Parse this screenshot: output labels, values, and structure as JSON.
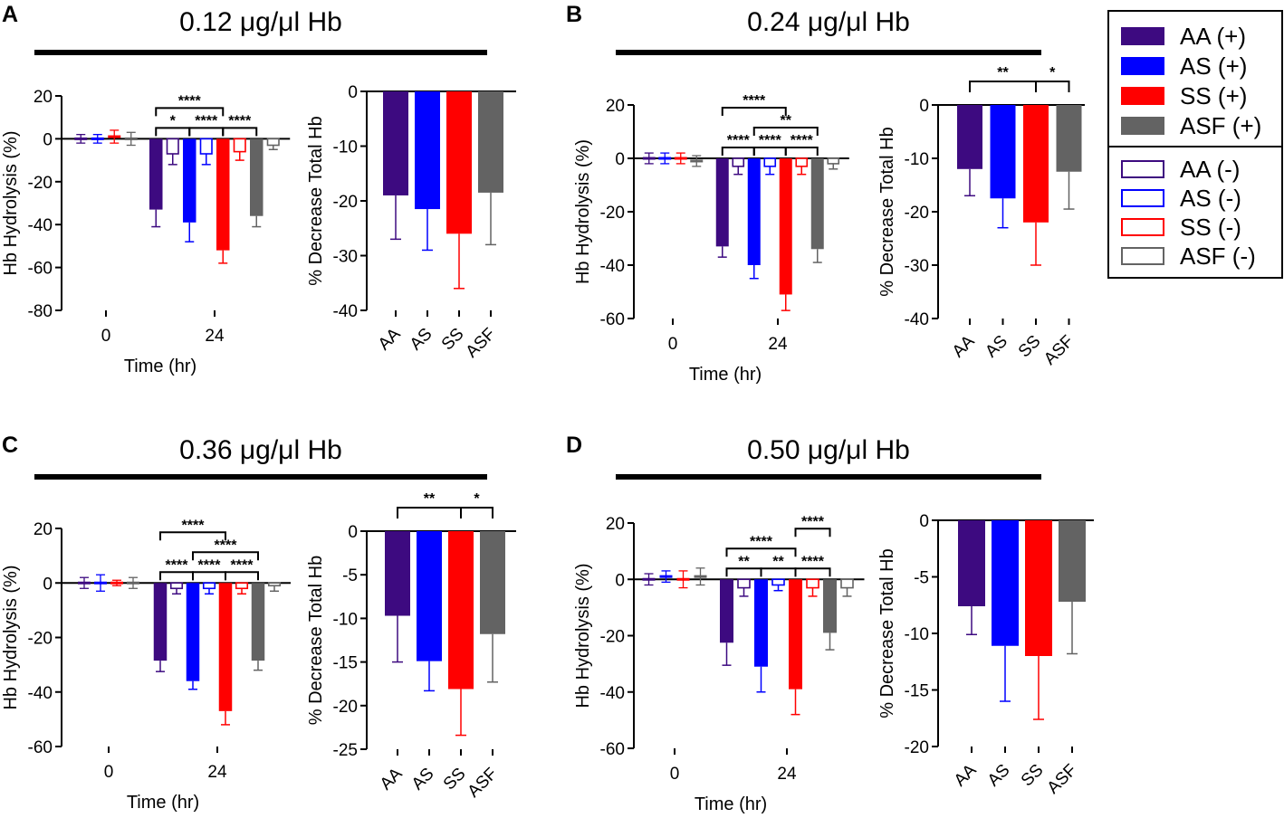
{
  "legend": {
    "entries": [
      {
        "label": "AA (+)",
        "color": "#3d0a80",
        "filled": true
      },
      {
        "label": "AS (+)",
        "color": "#0000ff",
        "filled": true
      },
      {
        "label": "SS (+)",
        "color": "#ff0000",
        "filled": true
      },
      {
        "label": "ASF (+)",
        "color": "#636363",
        "filled": true
      },
      {
        "label": "AA (-)",
        "color": "#3d0a80",
        "filled": false
      },
      {
        "label": "AS (-)",
        "color": "#0000ff",
        "filled": false
      },
      {
        "label": "SS (-)",
        "color": "#ff0000",
        "filled": false
      },
      {
        "label": "ASF (-)",
        "color": "#636363",
        "filled": false
      }
    ]
  },
  "chart_data": [
    {
      "panel": "A",
      "title": "0.12 μg/μl Hb",
      "hydrolysis": {
        "type": "bar",
        "xlabel": "Time (hr)",
        "ylabel": "Hb Hydrolysis (%)",
        "ylim": [
          -80,
          20
        ],
        "yticks": [
          20,
          0,
          -20,
          -40,
          -60,
          -80
        ],
        "xticks": [
          "0",
          "24"
        ],
        "t0": [
          {
            "v": 0,
            "e": 2
          },
          {
            "v": 0,
            "e": 2
          },
          {
            "v": 1,
            "e": 3
          },
          {
            "v": 0,
            "e": 3
          }
        ],
        "t24": [
          {
            "v": -33,
            "e": 8,
            "f": true
          },
          {
            "v": -7,
            "e": 5,
            "f": false
          },
          {
            "v": -39,
            "e": 9,
            "f": true
          },
          {
            "v": -7,
            "e": 5,
            "f": false
          },
          {
            "v": -52,
            "e": 6,
            "f": true
          },
          {
            "v": -6,
            "e": 4,
            "f": false
          },
          {
            "v": -36,
            "e": 5,
            "f": true
          },
          {
            "v": -3,
            "e": 2,
            "f": false
          }
        ],
        "sig": [
          {
            "a": 0,
            "b": 4,
            "label": "****",
            "level": 2
          },
          {
            "a": 0,
            "b": 2,
            "label": "*",
            "level": 1
          },
          {
            "a": 2,
            "b": 4,
            "label": "****",
            "level": 1
          },
          {
            "a": 4,
            "b": 6,
            "label": "****",
            "level": 1
          }
        ]
      },
      "decrease": {
        "type": "bar",
        "ylabel": "% Decrease Total Hb",
        "ylim": [
          -40,
          0
        ],
        "yticks": [
          0,
          -10,
          -20,
          -30,
          -40
        ],
        "categories": [
          "AA",
          "AS",
          "SS",
          "ASF"
        ],
        "values": [
          -19,
          -21.5,
          -26,
          -18.5
        ],
        "errors": [
          8,
          7.5,
          10,
          9.5
        ],
        "sig": []
      }
    },
    {
      "panel": "B",
      "title": "0.24 μg/μl Hb",
      "hydrolysis": {
        "type": "bar",
        "xlabel": "Time (hr)",
        "ylabel": "Hb Hydrolysis (%)",
        "ylim": [
          -60,
          20
        ],
        "yticks": [
          20,
          0,
          -20,
          -40,
          -60
        ],
        "xticks": [
          "0",
          "24"
        ],
        "t0": [
          {
            "v": 0,
            "e": 2
          },
          {
            "v": 0,
            "e": 2
          },
          {
            "v": 0,
            "e": 2
          },
          {
            "v": -1,
            "e": 2
          }
        ],
        "t24": [
          {
            "v": -33,
            "e": 4,
            "f": true
          },
          {
            "v": -3,
            "e": 3,
            "f": false
          },
          {
            "v": -40,
            "e": 5,
            "f": true
          },
          {
            "v": -3,
            "e": 3,
            "f": false
          },
          {
            "v": -51,
            "e": 6,
            "f": true
          },
          {
            "v": -3,
            "e": 3,
            "f": false
          },
          {
            "v": -34,
            "e": 5,
            "f": true
          },
          {
            "v": -2,
            "e": 2,
            "f": false
          }
        ],
        "sig": [
          {
            "a": 0,
            "b": 4,
            "label": "****",
            "level": 3
          },
          {
            "a": 2,
            "b": 6,
            "label": "**",
            "level": 2
          },
          {
            "a": 0,
            "b": 2,
            "label": "****",
            "level": 1
          },
          {
            "a": 2,
            "b": 4,
            "label": "****",
            "level": 1
          },
          {
            "a": 4,
            "b": 6,
            "label": "****",
            "level": 1
          }
        ]
      },
      "decrease": {
        "type": "bar",
        "ylabel": "% Decrease Total Hb",
        "ylim": [
          -40,
          0
        ],
        "yticks": [
          0,
          -10,
          -20,
          -30,
          -40
        ],
        "categories": [
          "AA",
          "AS",
          "SS",
          "ASF"
        ],
        "values": [
          -12,
          -17.5,
          -22,
          -12.5
        ],
        "errors": [
          5,
          5.5,
          8,
          7
        ],
        "sig": [
          {
            "a": 0,
            "b": 2,
            "label": "**",
            "level": 1
          },
          {
            "a": 2,
            "b": 3,
            "label": "*",
            "level": 1
          }
        ]
      }
    },
    {
      "panel": "C",
      "title": "0.36 μg/μl Hb",
      "hydrolysis": {
        "type": "bar",
        "xlabel": "Time (hr)",
        "ylabel": "Hb Hydrolysis (%)",
        "ylim": [
          -60,
          20
        ],
        "yticks": [
          20,
          0,
          -20,
          -40,
          -60
        ],
        "xticks": [
          "0",
          "24"
        ],
        "t0": [
          {
            "v": 0,
            "e": 2
          },
          {
            "v": 0,
            "e": 3
          },
          {
            "v": 0,
            "e": 1
          },
          {
            "v": 0,
            "e": 2
          }
        ],
        "t24": [
          {
            "v": -28.5,
            "e": 4,
            "f": true
          },
          {
            "v": -2,
            "e": 2,
            "f": false
          },
          {
            "v": -36,
            "e": 3,
            "f": true
          },
          {
            "v": -2,
            "e": 2,
            "f": false
          },
          {
            "v": -47,
            "e": 5,
            "f": true
          },
          {
            "v": -2,
            "e": 2,
            "f": false
          },
          {
            "v": -28.5,
            "e": 3.5,
            "f": true
          },
          {
            "v": -1,
            "e": 2,
            "f": false
          }
        ],
        "sig": [
          {
            "a": 0,
            "b": 4,
            "label": "****",
            "level": 3
          },
          {
            "a": 2,
            "b": 6,
            "label": "****",
            "level": 2
          },
          {
            "a": 0,
            "b": 2,
            "label": "****",
            "level": 1
          },
          {
            "a": 2,
            "b": 4,
            "label": "****",
            "level": 1
          },
          {
            "a": 4,
            "b": 6,
            "label": "****",
            "level": 1
          }
        ]
      },
      "decrease": {
        "type": "bar",
        "ylabel": "% Decrease Total Hb",
        "ylim": [
          -25,
          0
        ],
        "yticks": [
          0,
          -5,
          -10,
          -15,
          -20,
          -25
        ],
        "categories": [
          "AA",
          "AS",
          "SS",
          "ASF"
        ],
        "values": [
          -9.7,
          -14.9,
          -18.1,
          -11.8
        ],
        "errors": [
          5.3,
          3.4,
          5.3,
          5.5
        ],
        "sig": [
          {
            "a": 0,
            "b": 2,
            "label": "**",
            "level": 1
          },
          {
            "a": 2,
            "b": 3,
            "label": "*",
            "level": 1
          }
        ]
      }
    },
    {
      "panel": "D",
      "title": "0.50 μg/μl Hb",
      "hydrolysis": {
        "type": "bar",
        "xlabel": "Time (hr)",
        "ylabel": "Hb Hydrolysis (%)",
        "ylim": [
          -60,
          20
        ],
        "yticks": [
          20,
          0,
          -20,
          -40,
          -60
        ],
        "xticks": [
          "0",
          "24"
        ],
        "t0": [
          {
            "v": 0,
            "e": 2
          },
          {
            "v": 1,
            "e": 2
          },
          {
            "v": 0,
            "e": 3
          },
          {
            "v": 1,
            "e": 3
          }
        ],
        "t24": [
          {
            "v": -22.5,
            "e": 8,
            "f": true
          },
          {
            "v": -3,
            "e": 3,
            "f": false
          },
          {
            "v": -31,
            "e": 9,
            "f": true
          },
          {
            "v": -2,
            "e": 2,
            "f": false
          },
          {
            "v": -39,
            "e": 9,
            "f": true
          },
          {
            "v": -3,
            "e": 3,
            "f": false
          },
          {
            "v": -19,
            "e": 6,
            "f": true
          },
          {
            "v": -3,
            "e": 3,
            "f": false
          }
        ],
        "sig": [
          {
            "a": 4,
            "b": 6,
            "label": "****",
            "level": 3
          },
          {
            "a": 0,
            "b": 4,
            "label": "****",
            "level": 2
          },
          {
            "a": 0,
            "b": 2,
            "label": "**",
            "level": 1
          },
          {
            "a": 2,
            "b": 4,
            "label": "**",
            "level": 1
          },
          {
            "a": 4,
            "b": 6,
            "label": "****",
            "level": 1
          }
        ]
      },
      "decrease": {
        "type": "bar",
        "ylabel": "% Decrease Total Hb",
        "ylim": [
          -20,
          0
        ],
        "yticks": [
          0,
          -5,
          -10,
          -15,
          -20
        ],
        "categories": [
          "AA",
          "AS",
          "SS",
          "ASF"
        ],
        "values": [
          -7.6,
          -11.1,
          -12,
          -7.2
        ],
        "errors": [
          2.5,
          4.9,
          5.6,
          4.6
        ],
        "sig": []
      }
    }
  ]
}
